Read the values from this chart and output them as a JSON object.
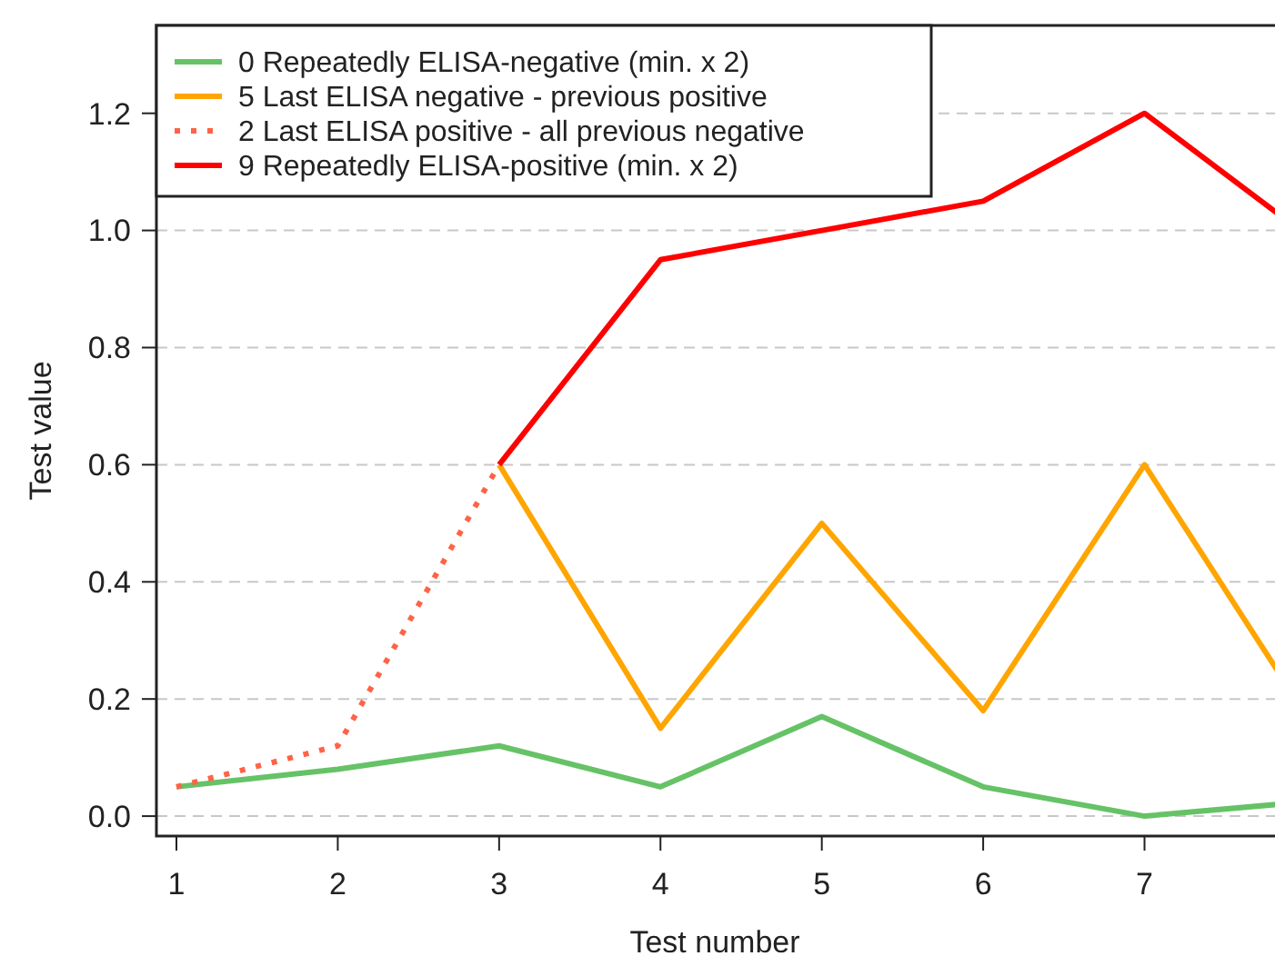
{
  "chart_data": {
    "type": "line",
    "xlabel": "Test number",
    "ylabel": "Test value",
    "xlim": [
      0.876,
      7.82
    ],
    "xticks": [
      1,
      2,
      3,
      4,
      5,
      6,
      7
    ],
    "ylim": [
      -0.034,
      1.35
    ],
    "yticks": [
      {
        "value": 0,
        "label": "0.0"
      },
      0.2,
      0.4,
      0.6,
      0.8,
      {
        "value": 1,
        "label": "1.0"
      },
      1.2
    ],
    "grid": "y",
    "legend": "top left",
    "marker": "none",
    "series": [
      {
        "name": "0 Repeatedly ELISA-negative (min. x 2)",
        "color": "#66c266",
        "x": [
          1,
          2,
          3,
          4,
          5,
          6,
          7,
          7.82
        ],
        "values": [
          0.05,
          0.08,
          0.12,
          0.05,
          0.17,
          0.05,
          0.0,
          0.02
        ]
      },
      {
        "name": "5 Last ELISA negative - previous positive",
        "color": "#ffa500",
        "x": [
          3,
          4,
          5,
          6,
          7,
          7.82
        ],
        "values": [
          0.6,
          0.15,
          0.5,
          0.18,
          0.6,
          0.25
        ]
      },
      {
        "name": "2 Last ELISA positive - all previous negative",
        "color": "#ff6347",
        "line_style": "dotted",
        "x": [
          1,
          2,
          3
        ],
        "values": [
          0.05,
          0.12,
          0.6
        ]
      },
      {
        "name": "9 Repeatedly ELISA-positive (min. x 2)",
        "color": "#ff0000",
        "x": [
          3,
          4,
          5,
          6,
          7,
          7.82
        ],
        "values": [
          0.6,
          0.95,
          1.0,
          1.05,
          1.2,
          1.03
        ]
      }
    ]
  }
}
